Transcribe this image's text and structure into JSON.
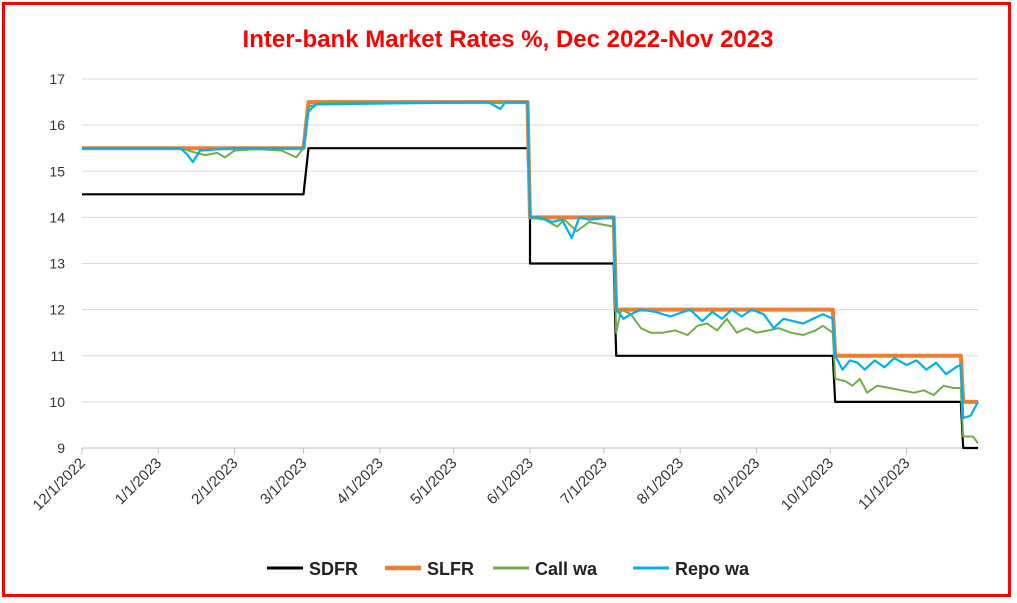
{
  "chart_data": {
    "type": "line",
    "title": "Inter-bank Market Rates %, Dec 2022-Nov 2023",
    "xlabel": "",
    "ylabel": "",
    "x_range": [
      "2022-12-01",
      "2023-11-30"
    ],
    "ylim": [
      9,
      17
    ],
    "yticks": [
      9,
      10,
      11,
      12,
      13,
      14,
      15,
      16,
      17
    ],
    "xticks": [
      "12/1/2022",
      "1/1/2023",
      "2/1/2023",
      "3/1/2023",
      "4/1/2023",
      "5/1/2023",
      "6/1/2023",
      "7/1/2023",
      "8/1/2023",
      "9/1/2023",
      "10/1/2023",
      "11/1/2023"
    ],
    "xtick_dates": [
      "2022-12-01",
      "2023-01-01",
      "2023-02-01",
      "2023-03-01",
      "2023-04-01",
      "2023-05-01",
      "2023-06-01",
      "2023-07-01",
      "2023-08-01",
      "2023-09-01",
      "2023-10-01",
      "2023-11-01"
    ],
    "grid": "horizontal",
    "legend": "bottom",
    "series": [
      {
        "name": "SDFR",
        "color": "#000000",
        "points": [
          [
            "2022-12-01",
            14.5
          ],
          [
            "2023-03-01",
            14.5
          ],
          [
            "2023-03-03",
            15.5
          ],
          [
            "2023-05-31",
            15.5
          ],
          [
            "2023-06-01",
            14.0
          ],
          [
            "2023-06-01",
            13.0
          ],
          [
            "2023-07-05",
            13.0
          ],
          [
            "2023-07-06",
            11.0
          ],
          [
            "2023-10-02",
            11.0
          ],
          [
            "2023-10-03",
            10.0
          ],
          [
            "2023-11-23",
            10.0
          ],
          [
            "2023-11-24",
            9.0
          ],
          [
            "2023-11-30",
            9.0
          ]
        ]
      },
      {
        "name": "SLFR",
        "color": "#ed7d31",
        "points": [
          [
            "2022-12-01",
            15.5
          ],
          [
            "2023-03-01",
            15.5
          ],
          [
            "2023-03-03",
            16.5
          ],
          [
            "2023-05-31",
            16.5
          ],
          [
            "2023-06-01",
            14.0
          ],
          [
            "2023-07-05",
            14.0
          ],
          [
            "2023-07-06",
            12.0
          ],
          [
            "2023-10-02",
            12.0
          ],
          [
            "2023-10-03",
            11.0
          ],
          [
            "2023-11-23",
            11.0
          ],
          [
            "2023-11-24",
            10.0
          ],
          [
            "2023-11-30",
            10.0
          ]
        ]
      },
      {
        "name": "Call wa",
        "color": "#70ad47",
        "points": [
          [
            "2022-12-01",
            15.5
          ],
          [
            "2023-01-10",
            15.5
          ],
          [
            "2023-01-15",
            15.42
          ],
          [
            "2023-01-20",
            15.35
          ],
          [
            "2023-01-25",
            15.4
          ],
          [
            "2023-01-28",
            15.3
          ],
          [
            "2023-02-01",
            15.45
          ],
          [
            "2023-02-10",
            15.48
          ],
          [
            "2023-02-20",
            15.45
          ],
          [
            "2023-02-26",
            15.3
          ],
          [
            "2023-03-01",
            15.5
          ],
          [
            "2023-03-03",
            16.4
          ],
          [
            "2023-03-10",
            16.5
          ],
          [
            "2023-05-31",
            16.5
          ],
          [
            "2023-06-01",
            14.0
          ],
          [
            "2023-06-07",
            13.95
          ],
          [
            "2023-06-12",
            13.8
          ],
          [
            "2023-06-15",
            13.95
          ],
          [
            "2023-06-20",
            13.7
          ],
          [
            "2023-06-25",
            13.9
          ],
          [
            "2023-07-05",
            13.8
          ],
          [
            "2023-07-06",
            11.5
          ],
          [
            "2023-07-08",
            12.0
          ],
          [
            "2023-07-12",
            11.9
          ],
          [
            "2023-07-16",
            11.6
          ],
          [
            "2023-07-20",
            11.5
          ],
          [
            "2023-07-25",
            11.5
          ],
          [
            "2023-07-30",
            11.55
          ],
          [
            "2023-08-04",
            11.45
          ],
          [
            "2023-08-08",
            11.65
          ],
          [
            "2023-08-12",
            11.7
          ],
          [
            "2023-08-16",
            11.55
          ],
          [
            "2023-08-20",
            11.8
          ],
          [
            "2023-08-24",
            11.5
          ],
          [
            "2023-08-28",
            11.6
          ],
          [
            "2023-09-01",
            11.5
          ],
          [
            "2023-09-06",
            11.55
          ],
          [
            "2023-09-10",
            11.6
          ],
          [
            "2023-09-15",
            11.5
          ],
          [
            "2023-09-20",
            11.45
          ],
          [
            "2023-09-25",
            11.55
          ],
          [
            "2023-09-28",
            11.65
          ],
          [
            "2023-10-02",
            11.5
          ],
          [
            "2023-10-03",
            10.5
          ],
          [
            "2023-10-07",
            10.45
          ],
          [
            "2023-10-10",
            10.35
          ],
          [
            "2023-10-13",
            10.5
          ],
          [
            "2023-10-16",
            10.2
          ],
          [
            "2023-10-20",
            10.35
          ],
          [
            "2023-10-25",
            10.3
          ],
          [
            "2023-10-30",
            10.25
          ],
          [
            "2023-11-04",
            10.2
          ],
          [
            "2023-11-08",
            10.25
          ],
          [
            "2023-11-12",
            10.15
          ],
          [
            "2023-11-16",
            10.35
          ],
          [
            "2023-11-20",
            10.3
          ],
          [
            "2023-11-23",
            10.3
          ],
          [
            "2023-11-24",
            9.25
          ],
          [
            "2023-11-28",
            9.25
          ],
          [
            "2023-11-30",
            9.1
          ]
        ]
      },
      {
        "name": "Repo wa",
        "color": "#00b0f0",
        "points": [
          [
            "2022-12-01",
            15.5
          ],
          [
            "2023-01-10",
            15.5
          ],
          [
            "2023-01-13",
            15.35
          ],
          [
            "2023-01-15",
            15.2
          ],
          [
            "2023-01-18",
            15.45
          ],
          [
            "2023-02-01",
            15.5
          ],
          [
            "2023-03-01",
            15.5
          ],
          [
            "2023-03-03",
            16.3
          ],
          [
            "2023-03-06",
            16.45
          ],
          [
            "2023-05-15",
            16.5
          ],
          [
            "2023-05-20",
            16.35
          ],
          [
            "2023-05-22",
            16.5
          ],
          [
            "2023-05-31",
            16.5
          ],
          [
            "2023-06-01",
            14.0
          ],
          [
            "2023-06-05",
            14.0
          ],
          [
            "2023-06-10",
            13.9
          ],
          [
            "2023-06-14",
            13.95
          ],
          [
            "2023-06-18",
            13.55
          ],
          [
            "2023-06-21",
            14.0
          ],
          [
            "2023-06-25",
            13.95
          ],
          [
            "2023-07-05",
            14.0
          ],
          [
            "2023-07-06",
            12.0
          ],
          [
            "2023-07-09",
            11.8
          ],
          [
            "2023-07-12",
            11.9
          ],
          [
            "2023-07-16",
            12.0
          ],
          [
            "2023-07-22",
            11.95
          ],
          [
            "2023-07-28",
            11.85
          ],
          [
            "2023-08-05",
            12.0
          ],
          [
            "2023-08-10",
            11.75
          ],
          [
            "2023-08-14",
            11.95
          ],
          [
            "2023-08-18",
            11.8
          ],
          [
            "2023-08-22",
            12.0
          ],
          [
            "2023-08-26",
            11.85
          ],
          [
            "2023-08-30",
            12.0
          ],
          [
            "2023-09-04",
            11.9
          ],
          [
            "2023-09-08",
            11.6
          ],
          [
            "2023-09-12",
            11.8
          ],
          [
            "2023-09-16",
            11.75
          ],
          [
            "2023-09-20",
            11.7
          ],
          [
            "2023-09-24",
            11.8
          ],
          [
            "2023-09-28",
            11.9
          ],
          [
            "2023-10-02",
            11.8
          ],
          [
            "2023-10-03",
            11.0
          ],
          [
            "2023-10-06",
            10.7
          ],
          [
            "2023-10-09",
            10.9
          ],
          [
            "2023-10-12",
            10.85
          ],
          [
            "2023-10-15",
            10.7
          ],
          [
            "2023-10-19",
            10.9
          ],
          [
            "2023-10-23",
            10.75
          ],
          [
            "2023-10-27",
            10.95
          ],
          [
            "2023-11-01",
            10.8
          ],
          [
            "2023-11-05",
            10.9
          ],
          [
            "2023-11-09",
            10.7
          ],
          [
            "2023-11-13",
            10.85
          ],
          [
            "2023-11-17",
            10.6
          ],
          [
            "2023-11-21",
            10.75
          ],
          [
            "2023-11-23",
            10.8
          ],
          [
            "2023-11-24",
            9.65
          ],
          [
            "2023-11-27",
            9.7
          ],
          [
            "2023-11-30",
            10.0
          ]
        ]
      }
    ]
  }
}
